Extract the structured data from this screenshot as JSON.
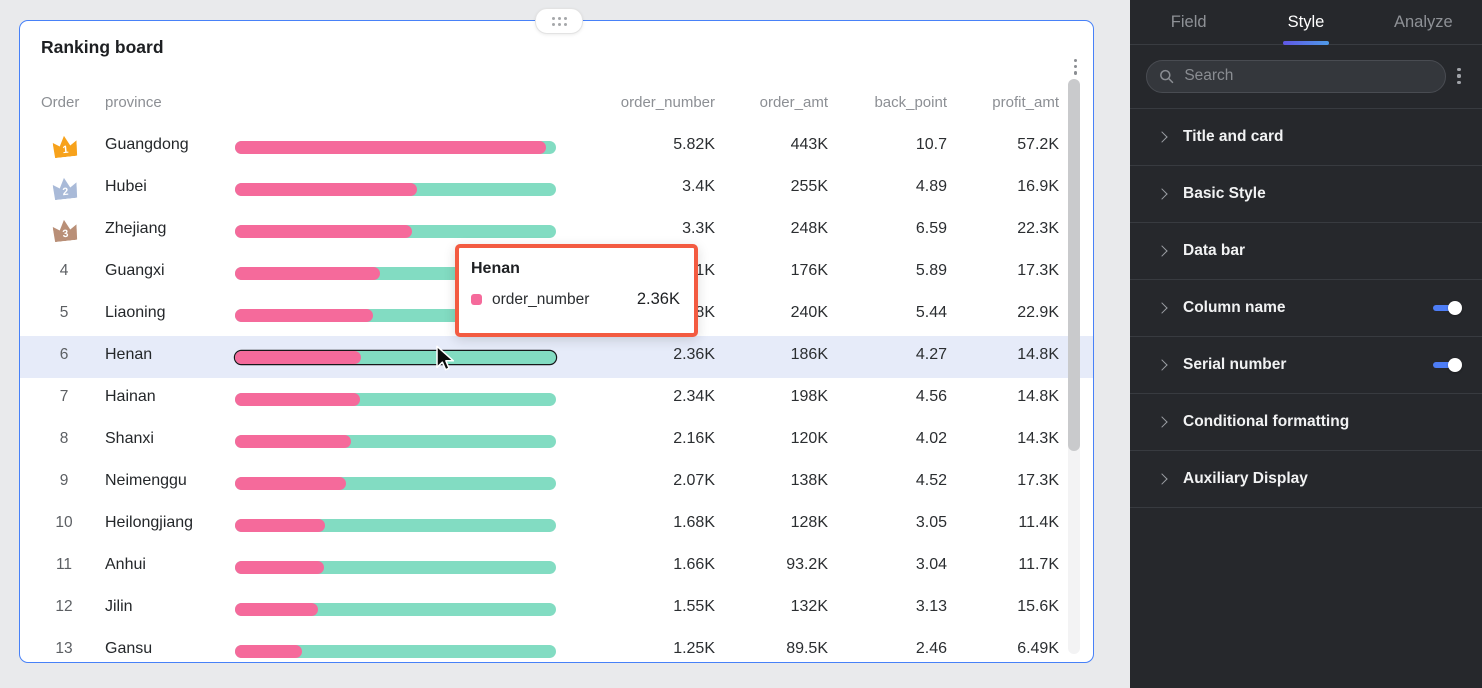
{
  "card": {
    "title": "Ranking board",
    "headers": {
      "order": "Order",
      "province": "province",
      "order_number": "order_number",
      "order_amt": "order_amt",
      "back_point": "back_point",
      "profit_amt": "profit_amt"
    },
    "bar_scale_max": 6000,
    "bar_colors": {
      "fill": "#f56a9b",
      "track": "#82dcc2"
    },
    "rows": [
      {
        "rank": 1,
        "medal": "gold",
        "province": "Guangdong",
        "order_number": "5.82K",
        "order_number_value": 5820,
        "order_amt": "443K",
        "back_point": "10.7",
        "profit_amt": "57.2K"
      },
      {
        "rank": 2,
        "medal": "silver",
        "province": "Hubei",
        "order_number": "3.4K",
        "order_number_value": 3400,
        "order_amt": "255K",
        "back_point": "4.89",
        "profit_amt": "16.9K"
      },
      {
        "rank": 3,
        "medal": "bronze",
        "province": "Zhejiang",
        "order_number": "3.3K",
        "order_number_value": 3300,
        "order_amt": "248K",
        "back_point": "6.59",
        "profit_amt": "22.3K"
      },
      {
        "rank": 4,
        "province": "Guangxi",
        "order_number": "2.71K",
        "order_number_value": 2710,
        "order_amt": "176K",
        "back_point": "5.89",
        "profit_amt": "17.3K"
      },
      {
        "rank": 5,
        "province": "Liaoning",
        "order_number": "2.58K",
        "order_number_value": 2580,
        "order_amt": "240K",
        "back_point": "5.44",
        "profit_amt": "22.9K"
      },
      {
        "rank": 6,
        "province": "Henan",
        "order_number": "2.36K",
        "order_number_value": 2360,
        "order_amt": "186K",
        "back_point": "4.27",
        "profit_amt": "14.8K",
        "highlighted": true
      },
      {
        "rank": 7,
        "province": "Hainan",
        "order_number": "2.34K",
        "order_number_value": 2340,
        "order_amt": "198K",
        "back_point": "4.56",
        "profit_amt": "14.8K"
      },
      {
        "rank": 8,
        "province": "Shanxi",
        "order_number": "2.16K",
        "order_number_value": 2160,
        "order_amt": "120K",
        "back_point": "4.02",
        "profit_amt": "14.3K"
      },
      {
        "rank": 9,
        "province": "Neimenggu",
        "order_number": "2.07K",
        "order_number_value": 2070,
        "order_amt": "138K",
        "back_point": "4.52",
        "profit_amt": "17.3K"
      },
      {
        "rank": 10,
        "province": "Heilongjiang",
        "order_number": "1.68K",
        "order_number_value": 1680,
        "order_amt": "128K",
        "back_point": "3.05",
        "profit_amt": "11.4K"
      },
      {
        "rank": 11,
        "province": "Anhui",
        "order_number": "1.66K",
        "order_number_value": 1660,
        "order_amt": "93.2K",
        "back_point": "3.04",
        "profit_amt": "11.7K"
      },
      {
        "rank": 12,
        "province": "Jilin",
        "order_number": "1.55K",
        "order_number_value": 1550,
        "order_amt": "132K",
        "back_point": "3.13",
        "profit_amt": "15.6K"
      },
      {
        "rank": 13,
        "province": "Gansu",
        "order_number": "1.25K",
        "order_number_value": 1250,
        "order_amt": "89.5K",
        "back_point": "2.46",
        "profit_amt": "6.49K"
      }
    ]
  },
  "medal_colors": {
    "gold": "#f7a21b",
    "silver": "#a9bad8",
    "bronze": "#b98f77"
  },
  "tooltip": {
    "title": "Henan",
    "series_label": "order_number",
    "value": "2.36K",
    "marker_color": "#f56a9b",
    "border_color": "#f35b41"
  },
  "panel": {
    "tabs": [
      {
        "label": "Field",
        "active": false
      },
      {
        "label": "Style",
        "active": true
      },
      {
        "label": "Analyze",
        "active": false
      }
    ],
    "search_placeholder": "Search",
    "accent_color": "#4d7df6",
    "sections": [
      {
        "label": "Title and card",
        "toggle": null
      },
      {
        "label": "Basic Style",
        "toggle": null
      },
      {
        "label": "Data bar",
        "toggle": null
      },
      {
        "label": "Column name",
        "toggle": "on"
      },
      {
        "label": "Serial number",
        "toggle": "on"
      },
      {
        "label": "Conditional formatting",
        "toggle": null
      },
      {
        "label": "Auxiliary Display",
        "toggle": null
      }
    ]
  }
}
